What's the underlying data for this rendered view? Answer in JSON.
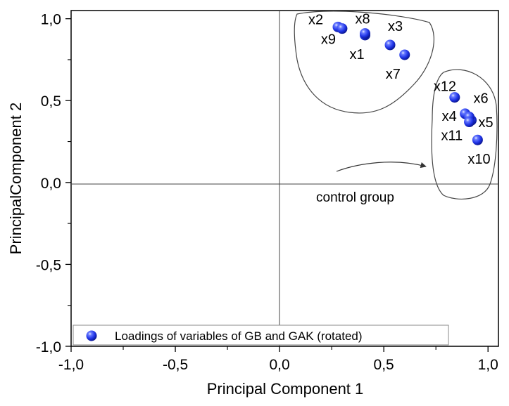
{
  "chart_data": {
    "type": "scatter",
    "xlabel": "Principal Component 1",
    "ylabel": "PrincipalComponent 2",
    "xlim": [
      -1.0,
      1.05
    ],
    "ylim": [
      -1.0,
      1.05
    ],
    "xticks": [
      -1.0,
      -0.5,
      0.0,
      0.5,
      1.0
    ],
    "yticks": [
      -1.0,
      -0.5,
      0.0,
      0.5,
      1.0
    ],
    "xtick_labels": [
      "-1,0",
      "-0,5",
      "0,0",
      "0,5",
      "1,0"
    ],
    "ytick_labels": [
      "-1,0",
      "-0,5",
      "0,0",
      "0,5",
      "1,0"
    ],
    "reference_lines": {
      "x": 0,
      "y": 0
    },
    "legend": {
      "label": "Loadings of variables of GB and GAK (rotated)",
      "position": "bottom-left"
    },
    "series": [
      {
        "name": "Loadings of variables of GB and GAK (rotated)",
        "color": "#1f33e6",
        "points": [
          {
            "label": "x1",
            "x": 0.41,
            "y": 0.9
          },
          {
            "label": "x2",
            "x": 0.28,
            "y": 0.95
          },
          {
            "label": "x3",
            "x": 0.53,
            "y": 0.84
          },
          {
            "label": "x4",
            "x": 0.89,
            "y": 0.42
          },
          {
            "label": "x5",
            "x": 0.92,
            "y": 0.38
          },
          {
            "label": "x6",
            "x": 0.91,
            "y": 0.4
          },
          {
            "label": "x7",
            "x": 0.6,
            "y": 0.78
          },
          {
            "label": "x8",
            "x": 0.41,
            "y": 0.91
          },
          {
            "label": "x9",
            "x": 0.3,
            "y": 0.94
          },
          {
            "label": "x10",
            "x": 0.95,
            "y": 0.26
          },
          {
            "label": "x11",
            "x": 0.91,
            "y": 0.37
          },
          {
            "label": "x12",
            "x": 0.84,
            "y": 0.52
          }
        ]
      }
    ],
    "annotations": [
      {
        "text": "control group",
        "target_group": [
          "x4",
          "x5",
          "x6",
          "x10",
          "x11",
          "x12"
        ]
      }
    ]
  }
}
